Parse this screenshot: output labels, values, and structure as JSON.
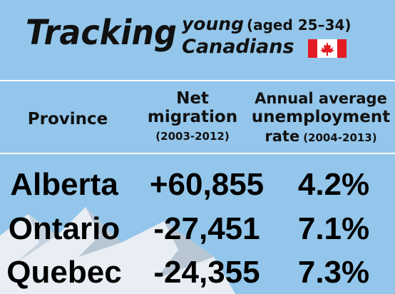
{
  "header": {
    "title": "Tracking",
    "subtitle_line1": "young",
    "subtitle_note": "(aged 25–34)",
    "subtitle_line2": "Canadians"
  },
  "table": {
    "columns": [
      {
        "lines": [
          "Province"
        ]
      },
      {
        "lines": [
          "Net",
          "migration"
        ],
        "note": "(2003-2012)"
      },
      {
        "lines": [
          "Annual average",
          "unemployment",
          "rate"
        ],
        "note": "(2004-2013)"
      }
    ],
    "rows": [
      [
        "Alberta",
        "+60,855",
        "4.2%"
      ],
      [
        "Ontario",
        "-27,451",
        "7.1%"
      ],
      [
        "Quebec",
        "-24,355",
        "7.3%"
      ]
    ]
  }
}
